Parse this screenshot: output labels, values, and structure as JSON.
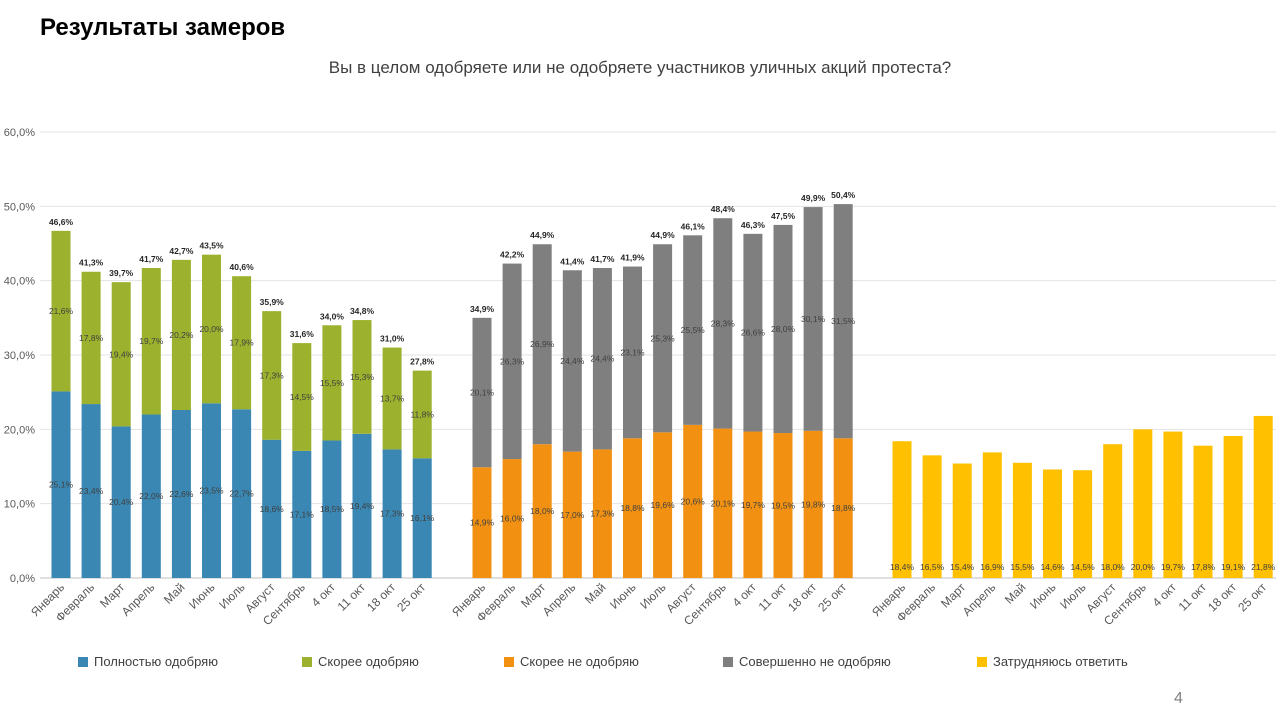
{
  "page": {
    "title": "Результаты замеров",
    "subtitle": "Вы в целом одобряете или не одобряете участников уличных акций протеста?",
    "page_number": "4"
  },
  "colors": {
    "full_approve": "#3A87B3",
    "rather_approve": "#9CB12D",
    "rather_disapprove": "#F29111",
    "full_disapprove": "#7F7F7F",
    "undecided": "#FFC000"
  },
  "legend": [
    {
      "label": "Полностью одобряю",
      "color": "#3A87B3"
    },
    {
      "label": "Скорее одобряю",
      "color": "#9CB12D"
    },
    {
      "label": "Скорее не одобряю",
      "color": "#F29111"
    },
    {
      "label": "Совершенно не одобряю",
      "color": "#7F7F7F"
    },
    {
      "label": "Затрудняюсь ответить",
      "color": "#FFC000"
    }
  ],
  "chart_data": {
    "type": "bar",
    "stacked": true,
    "title": "Вы в целом одобряете или не одобряете участников уличных акций протеста?",
    "categories": [
      "Январь",
      "Февраль",
      "Март",
      "Апрель",
      "Май",
      "Июнь",
      "Июль",
      "Август",
      "Сентябрь",
      "4 окт",
      "11 окт",
      "18 окт",
      "25 окт"
    ],
    "ylim": [
      0,
      60
    ],
    "yticks": [
      "0,0%",
      "10,0%",
      "20,0%",
      "30,0%",
      "40,0%",
      "50,0%",
      "60,0%"
    ],
    "grid": true,
    "legend_position": "bottom",
    "groups": [
      {
        "series": [
          {
            "name": "Полностью одобряю",
            "color": "#3A87B3",
            "values": [
              25.1,
              23.4,
              20.4,
              22.0,
              22.6,
              23.5,
              22.7,
              18.6,
              17.1,
              18.5,
              19.4,
              17.3,
              16.1
            ]
          },
          {
            "name": "Скорее одобряю",
            "color": "#9CB12D",
            "values": [
              21.6,
              17.8,
              19.4,
              19.7,
              20.2,
              20.0,
              17.9,
              17.3,
              14.5,
              15.5,
              15.3,
              13.7,
              11.8
            ]
          }
        ],
        "totals": [
          46.6,
          41.3,
          39.7,
          41.7,
          42.7,
          43.5,
          40.6,
          35.9,
          31.6,
          34.0,
          34.8,
          31.0,
          27.8
        ]
      },
      {
        "series": [
          {
            "name": "Скорее не одобряю",
            "color": "#F29111",
            "values": [
              14.9,
              16.0,
              18.0,
              17.0,
              17.3,
              18.8,
              19.6,
              20.6,
              20.1,
              19.7,
              19.5,
              19.8,
              18.8
            ]
          },
          {
            "name": "Совершенно не одобряю",
            "color": "#7F7F7F",
            "values": [
              20.1,
              26.3,
              26.9,
              24.4,
              24.4,
              23.1,
              25.3,
              25.5,
              28.3,
              26.6,
              28.0,
              30.1,
              31.5
            ]
          }
        ],
        "totals": [
          34.9,
          42.2,
          44.9,
          41.4,
          41.7,
          41.9,
          44.9,
          46.1,
          48.4,
          46.3,
          47.5,
          49.9,
          50.4
        ]
      },
      {
        "series": [
          {
            "name": "Затрудняюсь ответить",
            "color": "#FFC000",
            "values": [
              18.4,
              16.5,
              15.4,
              16.9,
              15.5,
              14.6,
              14.5,
              18.0,
              20.0,
              19.7,
              17.8,
              19.1,
              21.8
            ]
          }
        ],
        "totals": []
      }
    ]
  }
}
